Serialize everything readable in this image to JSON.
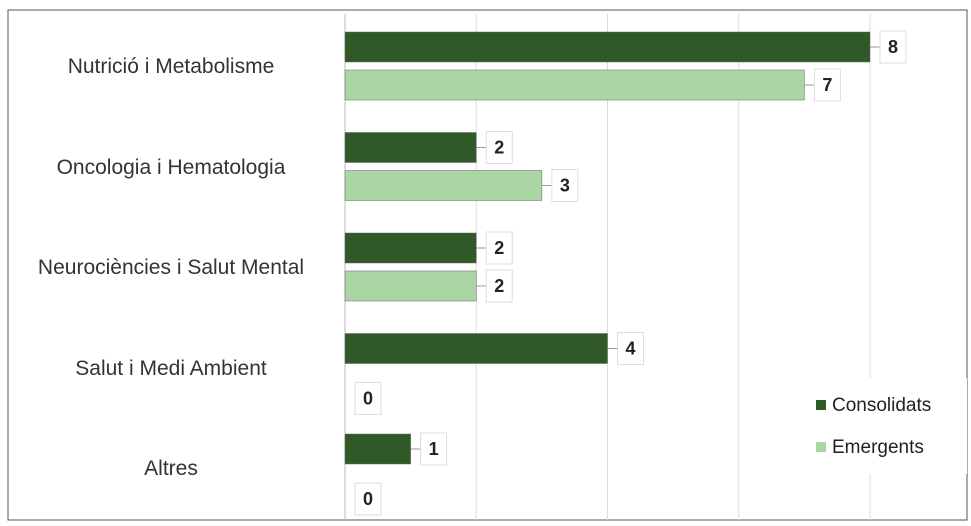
{
  "chart_data": {
    "type": "bar",
    "orientation": "horizontal",
    "categories": [
      "Nutrició i Metabolisme",
      "Oncologia i Hematologia",
      "Neurociències i Salut Mental",
      "Salut i Medi Ambient",
      "Altres"
    ],
    "series": [
      {
        "name": "Consolidats",
        "color": "#2f5a28",
        "values": [
          8,
          2,
          2,
          4,
          1
        ]
      },
      {
        "name": "Emergents",
        "color": "#a9d6a3",
        "values": [
          7,
          3,
          2,
          0,
          0
        ]
      }
    ],
    "xlim": [
      0,
      8
    ],
    "xticks": [
      0,
      2,
      4,
      6,
      8
    ],
    "grid": true,
    "legend": "right"
  }
}
